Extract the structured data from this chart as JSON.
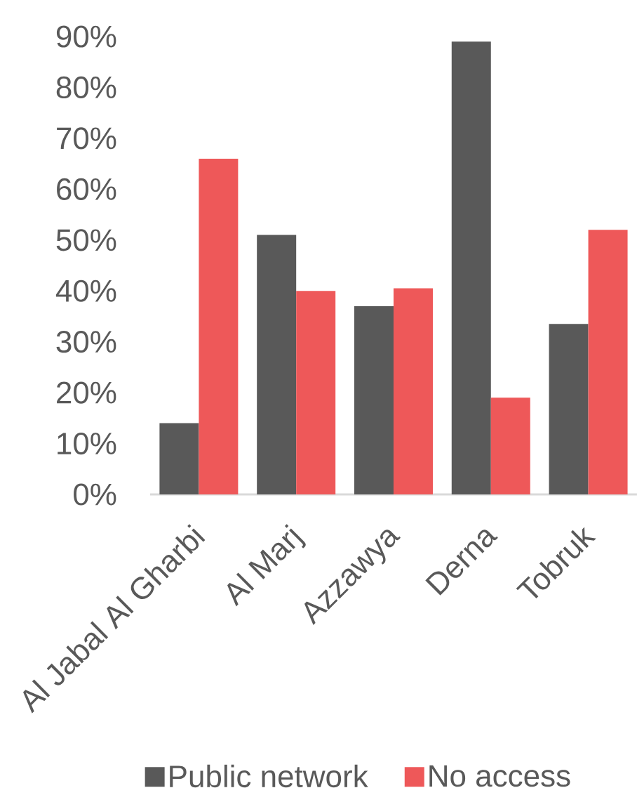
{
  "chart_data": {
    "type": "bar",
    "categories": [
      "Al Jabal Al Gharbi",
      "Al Marj",
      "Azzawya",
      "Derna",
      "Tobruk"
    ],
    "series": [
      {
        "name": "Public network",
        "color": "#595959",
        "values": [
          14,
          51,
          37,
          89,
          33.5
        ]
      },
      {
        "name": "No access",
        "color": "#ee5859",
        "values": [
          66,
          40,
          40.5,
          19,
          52
        ]
      }
    ],
    "ylim": [
      0,
      90
    ],
    "yticks": [
      {
        "value": 0,
        "label": "0%"
      },
      {
        "value": 10,
        "label": "10%"
      },
      {
        "value": 20,
        "label": "20%"
      },
      {
        "value": 30,
        "label": "30%"
      },
      {
        "value": 40,
        "label": "40%"
      },
      {
        "value": 50,
        "label": "50%"
      },
      {
        "value": 60,
        "label": "60%"
      },
      {
        "value": 70,
        "label": "70%"
      },
      {
        "value": 80,
        "label": "80%"
      },
      {
        "value": 90,
        "label": "90%"
      }
    ],
    "legend": "bottom",
    "grid": false
  }
}
